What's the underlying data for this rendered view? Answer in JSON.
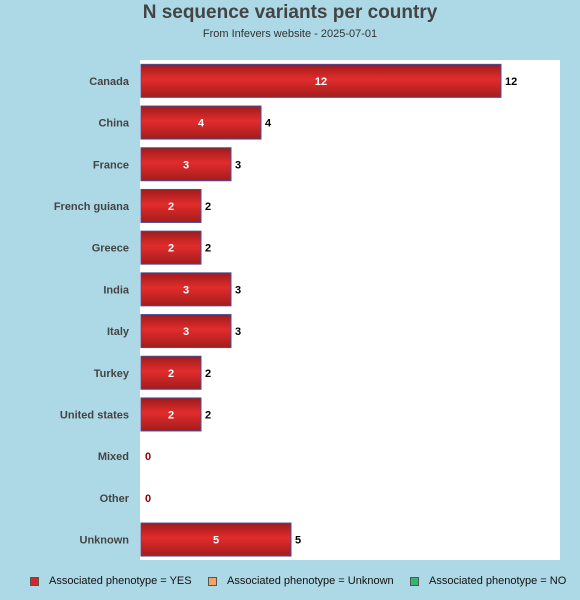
{
  "chart_data": {
    "type": "bar",
    "orientation": "horizontal",
    "title": "N sequence variants per country",
    "subtitle": "From Infevers website - 2025-07-01",
    "categories": [
      "Canada",
      "China",
      "France",
      "French guiana",
      "Greece",
      "India",
      "Italy",
      "Turkey",
      "United states",
      "Mixed",
      "Other",
      "Unknown"
    ],
    "series": [
      {
        "name": "Associated phenotype = YES",
        "color": "#d62728",
        "values": [
          12,
          4,
          3,
          2,
          2,
          3,
          3,
          2,
          2,
          0,
          0,
          5
        ]
      },
      {
        "name": "Associated phenotype = Unknown",
        "color": "#f4a460",
        "values": [
          0,
          0,
          0,
          0,
          0,
          0,
          0,
          0,
          0,
          0,
          0,
          0
        ]
      },
      {
        "name": "Associated phenotype = NO",
        "color": "#2eb872",
        "values": [
          0,
          0,
          0,
          0,
          0,
          0,
          0,
          0,
          0,
          0,
          0,
          0
        ]
      }
    ],
    "xlim": [
      0,
      14
    ],
    "grid": false,
    "legend_position": "bottom"
  }
}
